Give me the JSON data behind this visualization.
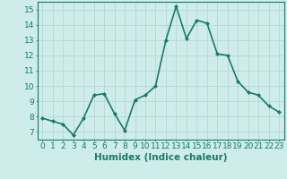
{
  "x": [
    0,
    1,
    2,
    3,
    4,
    5,
    6,
    7,
    8,
    9,
    10,
    11,
    12,
    13,
    14,
    15,
    16,
    17,
    18,
    19,
    20,
    21,
    22,
    23
  ],
  "y": [
    7.9,
    7.7,
    7.5,
    6.8,
    7.9,
    9.4,
    9.5,
    8.2,
    7.1,
    9.1,
    9.4,
    10.0,
    13.0,
    15.2,
    13.1,
    14.3,
    14.1,
    12.1,
    12.0,
    10.3,
    9.6,
    9.4,
    8.7,
    8.3
  ],
  "line_color": "#1a7a6a",
  "marker": "D",
  "marker_size": 2.0,
  "bg_color": "#ceecea",
  "grid_color": "#b8dbd8",
  "xlabel": "Humidex (Indice chaleur)",
  "ylim": [
    6.5,
    15.5
  ],
  "xlim": [
    -0.5,
    23.5
  ],
  "yticks": [
    7,
    8,
    9,
    10,
    11,
    12,
    13,
    14,
    15
  ],
  "xticks": [
    0,
    1,
    2,
    3,
    4,
    5,
    6,
    7,
    8,
    9,
    10,
    11,
    12,
    13,
    14,
    15,
    16,
    17,
    18,
    19,
    20,
    21,
    22,
    23
  ],
  "tick_label_fontsize": 6.5,
  "xlabel_fontsize": 7.5,
  "axis_color": "#1a7a6a",
  "linewidth": 1.2
}
